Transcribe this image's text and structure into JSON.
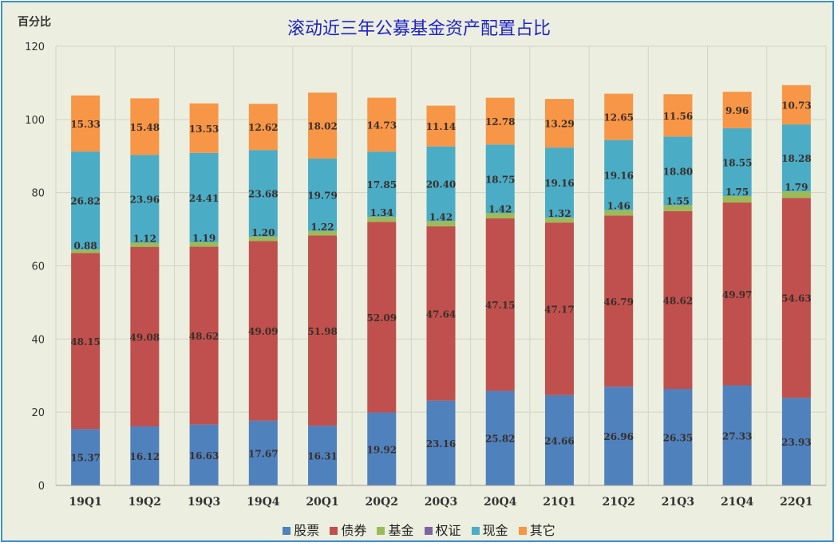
{
  "chart_data": {
    "type": "bar",
    "stacked": true,
    "title": "滚动近三年公募基金资产配置占比",
    "ylabel": "百分比",
    "ylim": [
      0,
      120
    ],
    "yticks": [
      0,
      20,
      40,
      60,
      80,
      100,
      120
    ],
    "grid": true,
    "legend_position": "bottom",
    "categories": [
      "19Q1",
      "19Q2",
      "19Q3",
      "19Q4",
      "20Q1",
      "20Q2",
      "20Q3",
      "20Q4",
      "21Q1",
      "21Q2",
      "21Q3",
      "21Q4",
      "22Q1"
    ],
    "series": [
      {
        "name": "股票",
        "color": "#4f81bd",
        "values": [
          15.37,
          16.12,
          16.63,
          17.67,
          16.31,
          19.92,
          23.16,
          25.82,
          24.66,
          26.96,
          26.35,
          27.33,
          23.93
        ]
      },
      {
        "name": "债券",
        "color": "#c0504d",
        "values": [
          48.15,
          49.08,
          48.62,
          49.09,
          51.98,
          52.09,
          47.64,
          47.15,
          47.17,
          46.79,
          48.62,
          49.97,
          54.63
        ]
      },
      {
        "name": "基金",
        "color": "#9bbb59",
        "values": [
          0.88,
          1.12,
          1.19,
          1.2,
          1.22,
          1.34,
          1.42,
          1.42,
          1.32,
          1.46,
          1.55,
          1.75,
          1.79
        ]
      },
      {
        "name": "权证",
        "color": "#8064a2",
        "values": [
          0,
          0,
          0,
          0,
          0,
          0,
          0,
          0,
          0,
          0,
          0,
          0,
          0
        ]
      },
      {
        "name": "现金",
        "color": "#4bacc6",
        "values": [
          26.82,
          23.96,
          24.41,
          23.68,
          19.79,
          17.85,
          20.4,
          18.75,
          19.16,
          19.16,
          18.8,
          18.55,
          18.28
        ]
      },
      {
        "name": "其它",
        "color": "#f79646",
        "values": [
          15.33,
          15.48,
          13.53,
          12.62,
          18.02,
          14.73,
          11.14,
          12.78,
          13.29,
          12.65,
          11.56,
          9.96,
          10.73
        ]
      }
    ],
    "data_labels": [
      [
        "15.37",
        "16.12",
        "16.63",
        "17.67",
        "16.31",
        "19.92",
        "23.16",
        "25.82",
        "24.66",
        "26.96",
        "26.35",
        "27.33",
        "23.93"
      ],
      [
        "48.15",
        "49.08",
        "48.62",
        "49.09",
        "51.98",
        "52.09",
        "47.64",
        "47.15",
        "47.17",
        "46.79",
        "48.62",
        "49.97",
        "54.63"
      ],
      [
        "0.88",
        "1.12",
        "1.19",
        "1.20",
        "1.22",
        "1.34",
        "1.42",
        "1.42",
        "1.32",
        "1.46",
        "1.55",
        "1.75",
        "1.79"
      ],
      [
        "",
        "",
        "",
        "",
        "",
        "",
        "",
        "",
        "",
        "",
        "",
        "",
        ""
      ],
      [
        "26.82",
        "23.96",
        "24.41",
        "23.68",
        "19.79",
        "17.85",
        "20.40",
        "18.75",
        "19.16",
        "19.16",
        "18.80",
        "18.55",
        "18.28"
      ],
      [
        "15.33",
        "15.48",
        "13.53",
        "12.62",
        "18.02",
        "14.73",
        "11.14",
        "12.78",
        "13.29",
        "12.65",
        "11.56",
        "9.96",
        "10.73"
      ]
    ]
  }
}
